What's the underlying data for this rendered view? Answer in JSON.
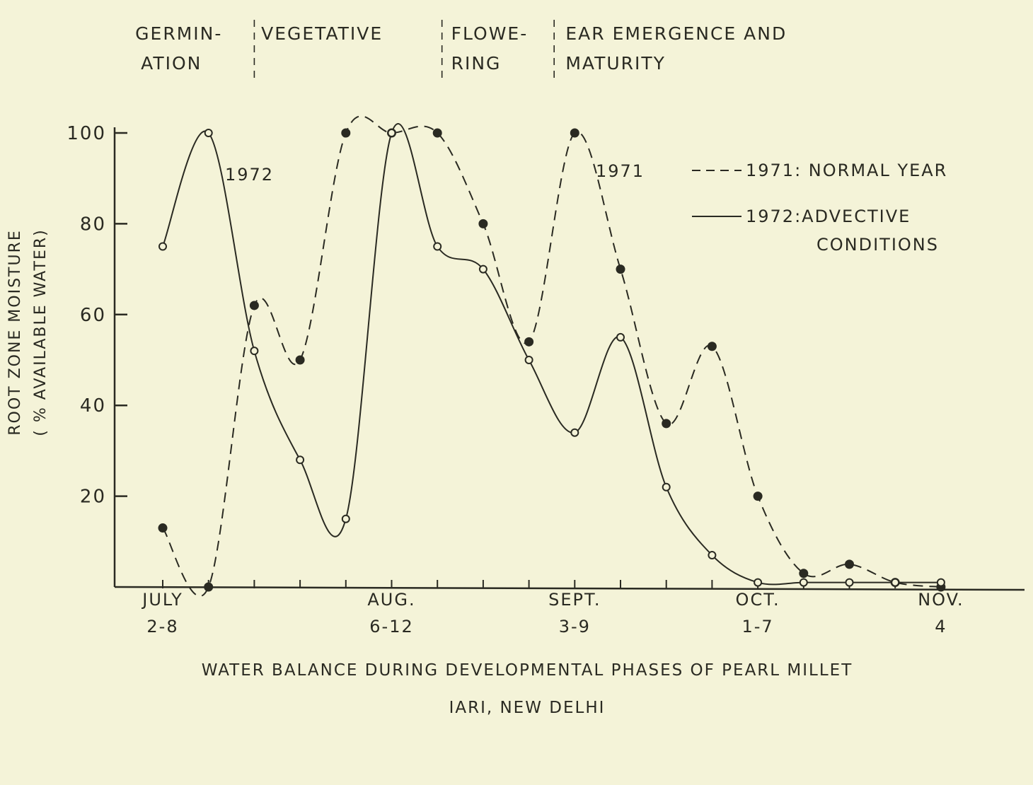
{
  "chart_data": {
    "type": "line",
    "title": "WATER BALANCE DURING DEVELOPMENTAL PHASES OF PEARL MILLET",
    "subtitle": "IARI, NEW DELHI",
    "ylabel_line1": "ROOT ZONE MOISTURE",
    "ylabel_line2": "( % AVAILABLE WATER)",
    "xlabel": "",
    "ylim": [
      0,
      100
    ],
    "yticks": [
      20,
      40,
      60,
      80,
      100
    ],
    "x_weeks": [
      1,
      18
    ],
    "x_tick_weeks": [
      1,
      2,
      3,
      4,
      5,
      6,
      7,
      8,
      9,
      10,
      11,
      12,
      13,
      14,
      15,
      16,
      17,
      18
    ],
    "month_labels": [
      {
        "week": 1,
        "name": "JULY",
        "dates": "2-8"
      },
      {
        "week": 6,
        "name": "AUG.",
        "dates": "6-12"
      },
      {
        "week": 10,
        "name": "SEPT.",
        "dates": "3-9"
      },
      {
        "week": 14,
        "name": "OCT.",
        "dates": "1-7"
      },
      {
        "week": 18,
        "name": "NOV.",
        "dates": "4"
      }
    ],
    "phases": [
      {
        "line1": "GERMIN-",
        "line2": "ATION",
        "start_week": 0.4
      },
      {
        "line1": "VEGETATIVE",
        "line2": "",
        "start_week": 3.15
      },
      {
        "line1": "FLOWE-",
        "line2": "RING",
        "start_week": 7.3
      },
      {
        "line1": "EAR EMERGENCE AND",
        "line2": "MATURITY",
        "start_week": 9.8
      }
    ],
    "phase_dividers": [
      3.0,
      7.1,
      9.55
    ],
    "series": [
      {
        "name": "1971: NORMAL YEAR",
        "label": "1971",
        "style": "dashed",
        "marker": "filled",
        "x": [
          1,
          2,
          3,
          4,
          5,
          6,
          7,
          8,
          9,
          10,
          11,
          12,
          13,
          14,
          15,
          16,
          17,
          18
        ],
        "values": [
          13,
          0,
          62,
          50,
          100,
          100,
          100,
          80,
          54,
          100,
          70,
          36,
          53,
          20,
          3,
          5,
          1,
          0
        ]
      },
      {
        "name": "1972:ADVECTIVE CONDITIONS",
        "label": "1972",
        "style": "solid",
        "marker": "open",
        "x": [
          1,
          2,
          3,
          4,
          5,
          6,
          7,
          8,
          9,
          10,
          11,
          12,
          13,
          14,
          15,
          16,
          17,
          18
        ],
        "values": [
          75,
          100,
          52,
          28,
          15,
          100,
          75,
          70,
          50,
          34,
          55,
          22,
          7,
          1,
          1,
          1,
          1,
          1
        ]
      }
    ]
  }
}
